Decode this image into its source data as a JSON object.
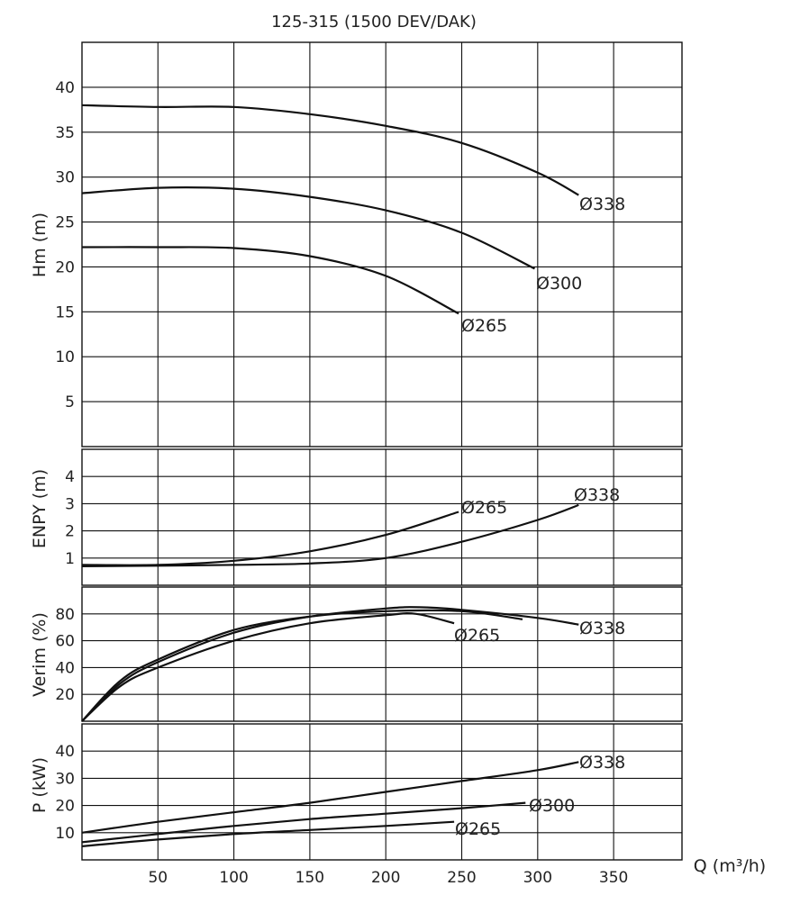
{
  "title": "125-315 (1500 DEV/DAK)",
  "xlabel": "Q (m³/h)",
  "chart_data": [
    {
      "type": "line",
      "id": "head",
      "ylabel": "Hm (m)",
      "xlim": [
        0,
        395
      ],
      "ylim": [
        0,
        45
      ],
      "xticks": [
        50,
        100,
        150,
        200,
        250,
        300,
        350
      ],
      "yticks": [
        5,
        10,
        15,
        20,
        25,
        30,
        35,
        40
      ],
      "grid": true,
      "series": [
        {
          "name": "Ø338",
          "x": [
            0,
            50,
            100,
            150,
            200,
            250,
            300,
            327
          ],
          "y": [
            38,
            37.8,
            37.8,
            37,
            35.7,
            33.8,
            30.5,
            28
          ]
        },
        {
          "name": "Ø300",
          "x": [
            0,
            50,
            100,
            150,
            200,
            250,
            298
          ],
          "y": [
            28.2,
            28.8,
            28.7,
            27.8,
            26.3,
            23.8,
            19.8
          ]
        },
        {
          "name": "Ø265",
          "x": [
            0,
            50,
            100,
            150,
            200,
            248
          ],
          "y": [
            22.2,
            22.2,
            22.1,
            21.2,
            19,
            14.8
          ]
        }
      ]
    },
    {
      "type": "line",
      "id": "npsh",
      "ylabel": "ENPY (m)",
      "xlim": [
        0,
        395
      ],
      "ylim": [
        0,
        5
      ],
      "yticks": [
        1,
        2,
        3,
        4
      ],
      "grid": true,
      "series": [
        {
          "name": "Ø265",
          "x": [
            0,
            50,
            100,
            150,
            200,
            248
          ],
          "y": [
            0.75,
            0.75,
            0.9,
            1.25,
            1.85,
            2.7
          ]
        },
        {
          "name": "Ø338",
          "x": [
            0,
            50,
            100,
            150,
            200,
            250,
            300,
            327
          ],
          "y": [
            0.7,
            0.72,
            0.75,
            0.8,
            1.0,
            1.6,
            2.4,
            2.95
          ]
        }
      ]
    },
    {
      "type": "line",
      "id": "efficiency",
      "ylabel": "Verim (%)",
      "xlim": [
        0,
        395
      ],
      "ylim": [
        0,
        100
      ],
      "yticks": [
        20,
        40,
        60,
        80
      ],
      "grid": true,
      "series": [
        {
          "name": "Ø338",
          "x": [
            0,
            25,
            50,
            100,
            150,
            200,
            222,
            250,
            300,
            327
          ],
          "y": [
            0,
            28,
            44,
            66,
            78,
            84,
            85,
            83,
            77,
            72
          ]
        },
        {
          "name": "Ø300",
          "x": [
            0,
            25,
            50,
            100,
            150,
            200,
            250,
            290
          ],
          "y": [
            0,
            30,
            46,
            68,
            78,
            82,
            82,
            76
          ]
        },
        {
          "name": "Ø265",
          "x": [
            0,
            25,
            50,
            100,
            150,
            200,
            220,
            245
          ],
          "y": [
            0,
            26,
            40,
            60,
            73,
            79,
            80,
            73
          ]
        }
      ]
    },
    {
      "type": "line",
      "id": "power",
      "ylabel": "P (kW)",
      "xlim": [
        0,
        395
      ],
      "ylim": [
        0,
        50
      ],
      "yticks": [
        10,
        20,
        30,
        40
      ],
      "grid": true,
      "series": [
        {
          "name": "Ø338",
          "x": [
            0,
            50,
            100,
            150,
            200,
            250,
            300,
            327
          ],
          "y": [
            10,
            14,
            17.5,
            21,
            25,
            29,
            33,
            36
          ]
        },
        {
          "name": "Ø300",
          "x": [
            0,
            50,
            100,
            150,
            200,
            250,
            292
          ],
          "y": [
            6.5,
            9.5,
            12.5,
            15,
            17,
            19,
            21
          ]
        },
        {
          "name": "Ø265",
          "x": [
            0,
            50,
            100,
            150,
            200,
            245
          ],
          "y": [
            5,
            7.5,
            9.5,
            11,
            12.5,
            14
          ]
        }
      ]
    }
  ],
  "curve_labels": {
    "head": [
      "Ø338",
      "Ø300",
      "Ø265"
    ],
    "npsh": [
      "Ø265",
      "Ø338"
    ],
    "efficiency": [
      "Ø265",
      "Ø338"
    ],
    "power": [
      "Ø338",
      "Ø300",
      "Ø265"
    ]
  }
}
